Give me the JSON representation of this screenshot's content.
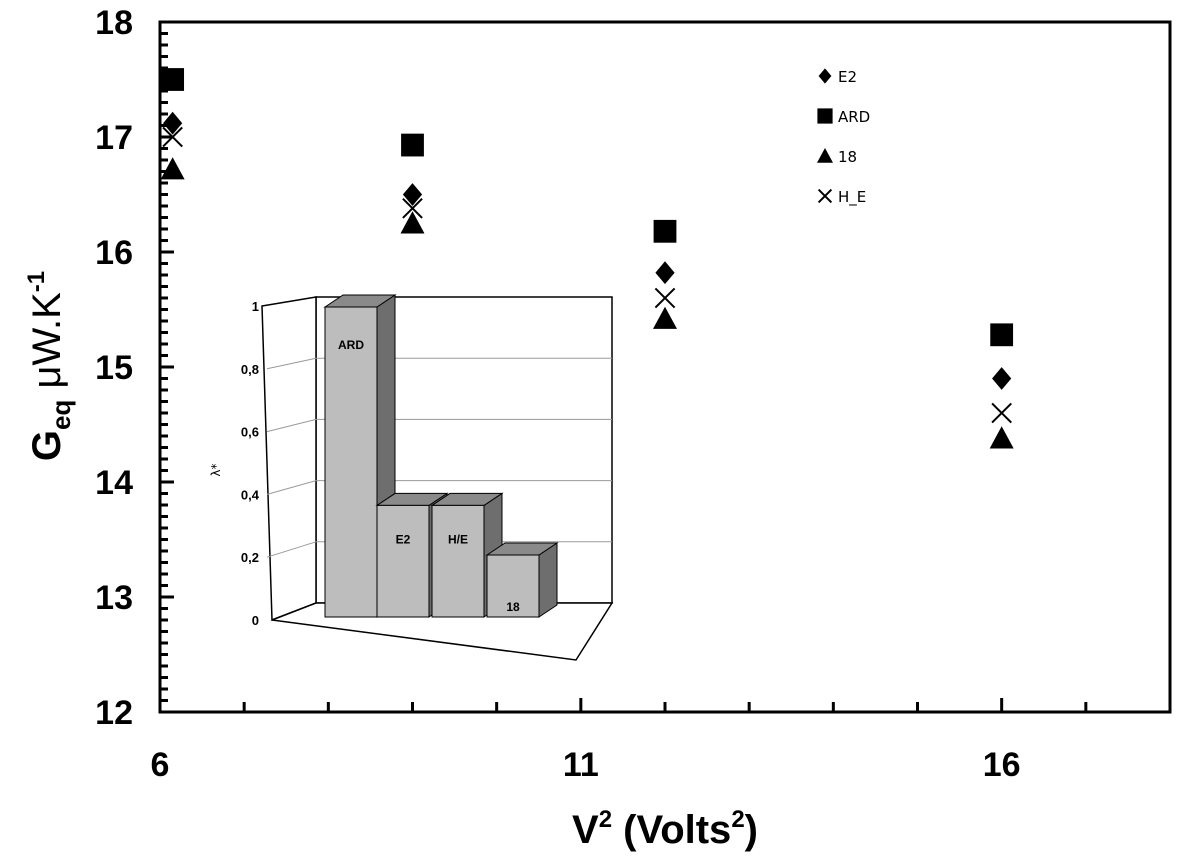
{
  "chart_data": [
    {
      "type": "scatter",
      "xlabel_base": "V",
      "xlabel_sup": "2",
      "xlabel_mid": " (Volts",
      "xlabel_sup2": "2",
      "xlabel_end": ")",
      "ylabel_base": "G",
      "ylabel_sub": "eq",
      "ylabel_unit": " μW.K",
      "ylabel_sup": "-1",
      "xlim": [
        6,
        18
      ],
      "ylim": [
        12,
        18
      ],
      "x_ticks": [
        6,
        11,
        16
      ],
      "y_ticks": [
        12,
        13,
        14,
        15,
        16,
        17,
        18
      ],
      "grid": false,
      "legend_position": "top-right",
      "series": [
        {
          "name": "E2",
          "marker": "diamond",
          "x": [
            6.15,
            9.0,
            12.0,
            16.0
          ],
          "y": [
            17.12,
            16.5,
            15.82,
            14.9
          ]
        },
        {
          "name": "ARD",
          "marker": "square",
          "x": [
            6.15,
            9.0,
            12.0,
            16.0
          ],
          "y": [
            17.5,
            16.93,
            16.18,
            15.28
          ]
        },
        {
          "name": "18",
          "marker": "triangle",
          "x": [
            6.15,
            9.0,
            12.0,
            16.0
          ],
          "y": [
            16.72,
            16.25,
            15.42,
            14.38
          ]
        },
        {
          "name": "H_E",
          "marker": "cross",
          "x": [
            6.15,
            9.0,
            12.0,
            16.0
          ],
          "y": [
            17.0,
            16.38,
            15.6,
            14.6
          ]
        }
      ]
    },
    {
      "type": "bar",
      "style": "3d",
      "ylabel": "λ*",
      "ylim": [
        0,
        1
      ],
      "y_ticks": [
        "0",
        "0,2",
        "0,4",
        "0,6",
        "0,8",
        "1"
      ],
      "categories": [
        "ARD",
        "E2",
        "H/E",
        "18"
      ],
      "values": [
        1.0,
        0.36,
        0.36,
        0.2
      ]
    }
  ]
}
